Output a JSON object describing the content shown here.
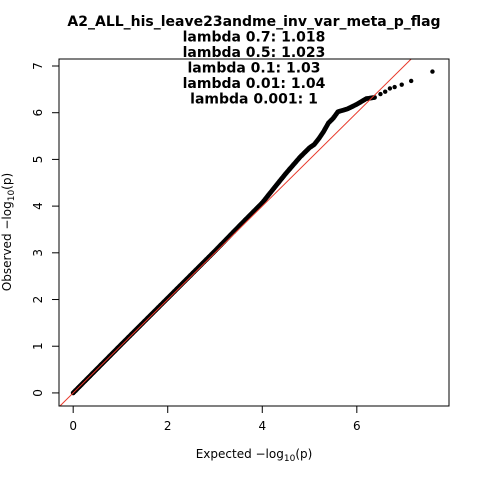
{
  "chart_data": {
    "type": "scatter",
    "title_lines": [
      "A2_ALL_his_leave23andme_inv_var_meta_p_flag",
      "lambda 0.7: 1.018",
      "lambda 0.5: 1.023",
      "lambda 0.1: 1.03",
      "lambda 0.01: 1.04",
      "lambda 0.001: 1"
    ],
    "xlabel": {
      "prefix": "Expected  −log",
      "sub": "10",
      "suffix": "(p)"
    },
    "ylabel": {
      "prefix": "Observed  −log",
      "sub": "10",
      "suffix": "(p)"
    },
    "xlim": [
      -0.3,
      7.95
    ],
    "ylim": [
      -0.28,
      7.15
    ],
    "x_ticks": [
      0,
      2,
      4,
      6
    ],
    "y_ticks": [
      0,
      1,
      2,
      3,
      4,
      5,
      6,
      7
    ],
    "x_tick_labels": [
      "0",
      "2",
      "4",
      "6"
    ],
    "y_tick_labels": [
      "0",
      "1",
      "2",
      "3",
      "4",
      "5",
      "6",
      "7"
    ],
    "reference_line": {
      "slope": 1,
      "intercept": 0,
      "color": "#e8392b"
    },
    "point_color": "#000000",
    "dense_curve": [
      [
        0.0,
        0.0
      ],
      [
        1.0,
        1.02
      ],
      [
        2.0,
        2.03
      ],
      [
        3.0,
        3.04
      ],
      [
        3.5,
        3.56
      ],
      [
        4.0,
        4.07
      ],
      [
        4.3,
        4.45
      ],
      [
        4.5,
        4.7
      ],
      [
        4.8,
        5.05
      ],
      [
        5.0,
        5.25
      ],
      [
        5.1,
        5.32
      ],
      [
        5.2,
        5.45
      ],
      [
        5.3,
        5.6
      ],
      [
        5.4,
        5.78
      ],
      [
        5.5,
        5.88
      ],
      [
        5.6,
        6.02
      ],
      [
        5.8,
        6.08
      ],
      [
        6.0,
        6.18
      ],
      [
        6.2,
        6.3
      ],
      [
        6.4,
        6.33
      ]
    ],
    "tail_points": [
      [
        6.5,
        6.4
      ],
      [
        6.6,
        6.45
      ],
      [
        6.7,
        6.52
      ],
      [
        6.8,
        6.55
      ],
      [
        6.95,
        6.6
      ],
      [
        7.15,
        6.68
      ],
      [
        7.6,
        6.88
      ]
    ]
  }
}
